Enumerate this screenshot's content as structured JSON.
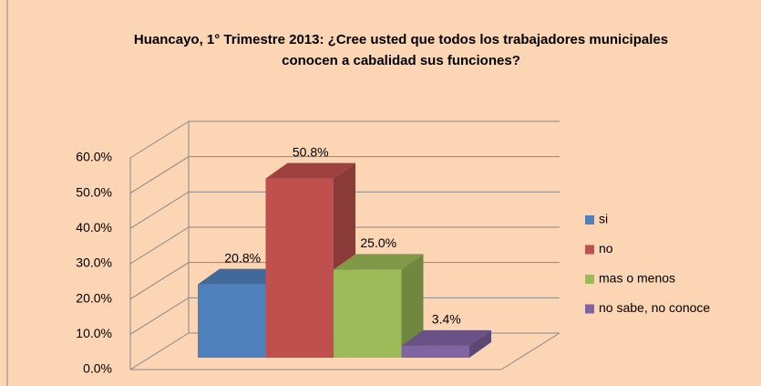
{
  "chart_data": {
    "type": "bar3d",
    "title": "Huancayo, 1° Trimestre 2013: ¿Cree usted que todos los trabajadores municipales conocen a cabalidad sus funciones?",
    "categories": [
      "si",
      "no",
      "mas o menos",
      "no sabe, no conoce"
    ],
    "values": [
      20.8,
      50.8,
      25.0,
      3.4
    ],
    "value_labels": [
      "20.8%",
      "50.8%",
      "25.0%",
      "3.4%"
    ],
    "colors": [
      "#4f81bd",
      "#c0504d",
      "#9bbb59",
      "#8064a2"
    ],
    "ylim": [
      0,
      60
    ],
    "yticks": [
      {
        "value": 0,
        "label": "0.0%"
      },
      {
        "value": 10,
        "label": "10.0%"
      },
      {
        "value": 20,
        "label": "20.0%"
      },
      {
        "value": 30,
        "label": "30.0%"
      },
      {
        "value": 40,
        "label": "40.0%"
      },
      {
        "value": 50,
        "label": "50.0%"
      },
      {
        "value": 60,
        "label": "60.0%"
      }
    ],
    "grid": true,
    "legend": "right"
  }
}
